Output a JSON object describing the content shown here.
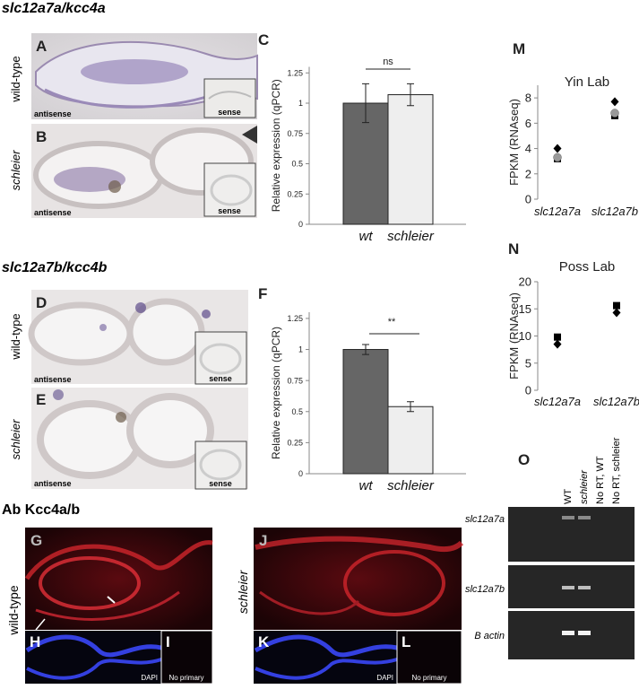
{
  "headings": [
    "slc12a7a/kcc4a",
    "slc12a7b/kcc4b",
    "Ab Kcc4a/b"
  ],
  "panel_labels": [
    "A",
    "B",
    "C",
    "D",
    "E",
    "F",
    "G",
    "H",
    "I",
    "J",
    "K",
    "L",
    "M",
    "N",
    "O"
  ],
  "row_labels": [
    "wild-type",
    "schleier",
    "wild-type",
    "schleier",
    "wild-type",
    "schleier"
  ],
  "image_labels": [
    "antisense",
    "sense",
    "antisense",
    "sense",
    "antisense",
    "sense",
    "antisense",
    "sense",
    "DAPI",
    "No primary",
    "DAPI",
    "No primary"
  ],
  "gel": {
    "columns": [
      "WT",
      "schleier",
      "No RT, WT",
      "No RT, schleier"
    ],
    "rows": [
      "slc12a7a",
      "slc12a7b",
      "B actin"
    ]
  },
  "chart_data": [
    {
      "type": "bar",
      "y_label": "Relative expression (qPCR)",
      "categories": [
        "wt",
        "schleier"
      ],
      "values": [
        1,
        1.07
      ],
      "errors": [
        0.16,
        0.09
      ],
      "colors": [
        "#666666",
        "#eeeeee"
      ],
      "ylim": [
        0,
        1.3
      ],
      "yticks": [
        0,
        0.25,
        0.5,
        0.75,
        1,
        1.25
      ],
      "annotation": "ns"
    },
    {
      "type": "bar",
      "y_label": "Relative expression (qPCR)",
      "categories": [
        "wt",
        "schleier"
      ],
      "values": [
        1,
        0.54
      ],
      "errors": [
        0.04,
        0.04
      ],
      "colors": [
        "#666666",
        "#eeeeee"
      ],
      "ylim": [
        0,
        1.3
      ],
      "yticks": [
        0,
        0.25,
        0.5,
        0.75,
        1,
        1.25
      ],
      "annotation": "**"
    },
    {
      "type": "scatter",
      "title": "Yin Lab",
      "y_label": "FPKM (RNAseq)",
      "categories": [
        "slc12a7a",
        "slc12a7b"
      ],
      "ylim": [
        0,
        9
      ],
      "yticks": [
        0,
        2,
        4,
        6,
        8
      ],
      "series": [
        {
          "marker": "diamond",
          "color": "#000000",
          "values": [
            4.0,
            7.7
          ]
        },
        {
          "marker": "square",
          "color": "#000000",
          "values": [
            3.2,
            6.6
          ]
        },
        {
          "marker": "circle",
          "color": "#999999",
          "values": [
            3.3,
            6.8
          ]
        }
      ]
    },
    {
      "type": "scatter",
      "title": "Poss Lab",
      "y_label": "FPKM (RNAseq)",
      "categories": [
        "slc12a7a",
        "slc12a7b"
      ],
      "ylim": [
        0,
        20
      ],
      "yticks": [
        0,
        5,
        10,
        15,
        20
      ],
      "series": [
        {
          "marker": "square",
          "color": "#000000",
          "values": [
            9.8,
            15.6
          ]
        },
        {
          "marker": "diamond",
          "color": "#000000",
          "values": [
            8.5,
            14.3
          ]
        }
      ]
    }
  ]
}
